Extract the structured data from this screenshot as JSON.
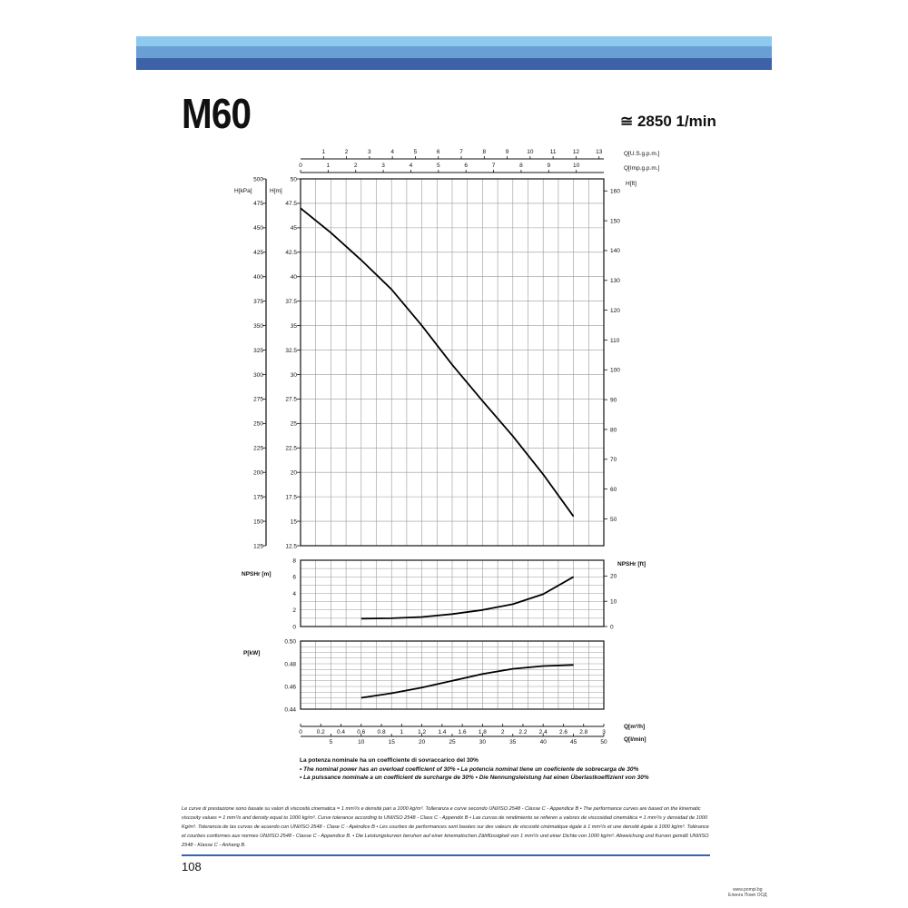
{
  "title": "M60",
  "speed": "≅ 2850 1/min",
  "page_number": "108",
  "brand_line1": "www.pompi.bg",
  "brand_line2": "Елинга Помп ООД",
  "notes": {
    "line1": "La potenza nominale ha un coefficiente di sovraccarico del 30%",
    "line2": "• The nominal power has an overload coefficient of 30%  • La potencia nominal tiene un coeficiente de sobrecarga de 30%",
    "line3": "• La puissance nominale a un coefficient de surcharge de 30%  • Die Nennungsleistung hat einen Überlastkoeffizient von 30%"
  },
  "footer": "Le curve di prestazione sono basate su valori di viscosità cinematica = 1 mm²/s e densità pari a 1000 kg/m³. Tolleranza e curve secondo UNI/ISO 2548 - Classe C - Appendice B • The performance curves are based on the kinematic viscosity values = 1 mm²/s and density equal to 1000 kg/m³. Curve tolerance according to UNI/ISO 2548 - Class C - Appendix B • Las curvas de rendimiento se refieren a valores de viscosidad cinemática = 1 mm²/s y densidad de 1000 Kg/m³. Tolerancia de las curvas de acuerdo con UNI/ISO 2548 - Clase C - Apéndice B • Les courbes de performances sont basées sur des valeurs de viscosité cinématique égale à 1 mm²/s et une densité égale à 1000 kg/m³. Tolérance et courbes conformes aux normes UNI/ISO 2548 - Classe C - Appendice B. • Die Leistungskurven beruhen auf einer kinematischen Zähflüssigkeit von 1 mm²/s und einer Dichte von 1000 kg/m³. Abweichung und Kurven gemäß UNI/ISO 2548 - Klasse C - Anhang B.",
  "chart_data": [
    {
      "type": "line",
      "name": "head",
      "x_top_usgpm": {
        "label": "Q[U.S.g.p.m.]",
        "ticks": [
          "1",
          "2",
          "3",
          "4",
          "5",
          "6",
          "7",
          "8",
          "9",
          "10",
          "11",
          "12",
          "13"
        ]
      },
      "x_top_impgpm": {
        "label": "Q[Imp.g.p.m.]",
        "ticks": [
          "0",
          "1",
          "2",
          "3",
          "4",
          "5",
          "6",
          "7",
          "8",
          "9",
          "10"
        ]
      },
      "y_left_kpa": {
        "label": "H[kPa]",
        "ticks": [
          "125",
          "150",
          "175",
          "200",
          "225",
          "250",
          "275",
          "300",
          "325",
          "350",
          "375",
          "400",
          "425",
          "450",
          "475",
          "500"
        ]
      },
      "y_left_m": {
        "label": "H[m]",
        "ticks": [
          "12.5",
          "15",
          "17.5",
          "20",
          "22.5",
          "25",
          "27.5",
          "30",
          "32.5",
          "35",
          "37.5",
          "40",
          "42.5",
          "45",
          "47.5",
          "50"
        ]
      },
      "y_right_ft": {
        "label": "H[ft]",
        "ticks": [
          "50",
          "60",
          "70",
          "80",
          "90",
          "100",
          "110",
          "120",
          "130",
          "140",
          "150",
          "160"
        ]
      },
      "xlim": [
        0,
        50
      ],
      "ylim": [
        12.5,
        50
      ],
      "x": [
        0,
        5,
        10,
        15,
        20,
        25,
        30,
        35,
        40,
        45
      ],
      "y": [
        47,
        44.5,
        41.7,
        38.7,
        35,
        31,
        27.3,
        23.7,
        19.8,
        15.5
      ]
    },
    {
      "type": "line",
      "name": "npsh",
      "y_left": {
        "label": "NPSHr [m]",
        "ticks": [
          "0",
          "2",
          "4",
          "6",
          "8"
        ]
      },
      "y_right": {
        "label": "NPSHr [ft]",
        "ticks": [
          "0",
          "10",
          "20"
        ]
      },
      "xlim": [
        0,
        50
      ],
      "ylim": [
        0,
        8
      ],
      "x": [
        10,
        15,
        20,
        25,
        30,
        35,
        40,
        45
      ],
      "y": [
        0.95,
        1.0,
        1.15,
        1.5,
        2.0,
        2.7,
        3.9,
        6.0
      ]
    },
    {
      "type": "line",
      "name": "power",
      "y_left": {
        "label": "P[kW]",
        "ticks": [
          "0.44",
          "0.46",
          "0.48",
          "0.50"
        ]
      },
      "xlim": [
        0,
        50
      ],
      "ylim": [
        0.44,
        0.5
      ],
      "x": [
        10,
        15,
        20,
        25,
        30,
        35,
        40,
        45
      ],
      "y": [
        0.45,
        0.454,
        0.459,
        0.465,
        0.471,
        0.4755,
        0.478,
        0.479
      ],
      "x_bottom_m3h": {
        "label": "Q[m³/h]",
        "ticks": [
          "0",
          "0.2",
          "0.4",
          "0.6",
          "0.8",
          "1",
          "1.2",
          "1.4",
          "1.6",
          "1.8",
          "2",
          "2.2",
          "2.4",
          "2.6",
          "2.8",
          "3"
        ]
      },
      "x_bottom_lmin": {
        "label": "Q[l/min]",
        "ticks": [
          "5",
          "10",
          "15",
          "20",
          "25",
          "30",
          "35",
          "40",
          "45",
          "50"
        ]
      }
    }
  ]
}
